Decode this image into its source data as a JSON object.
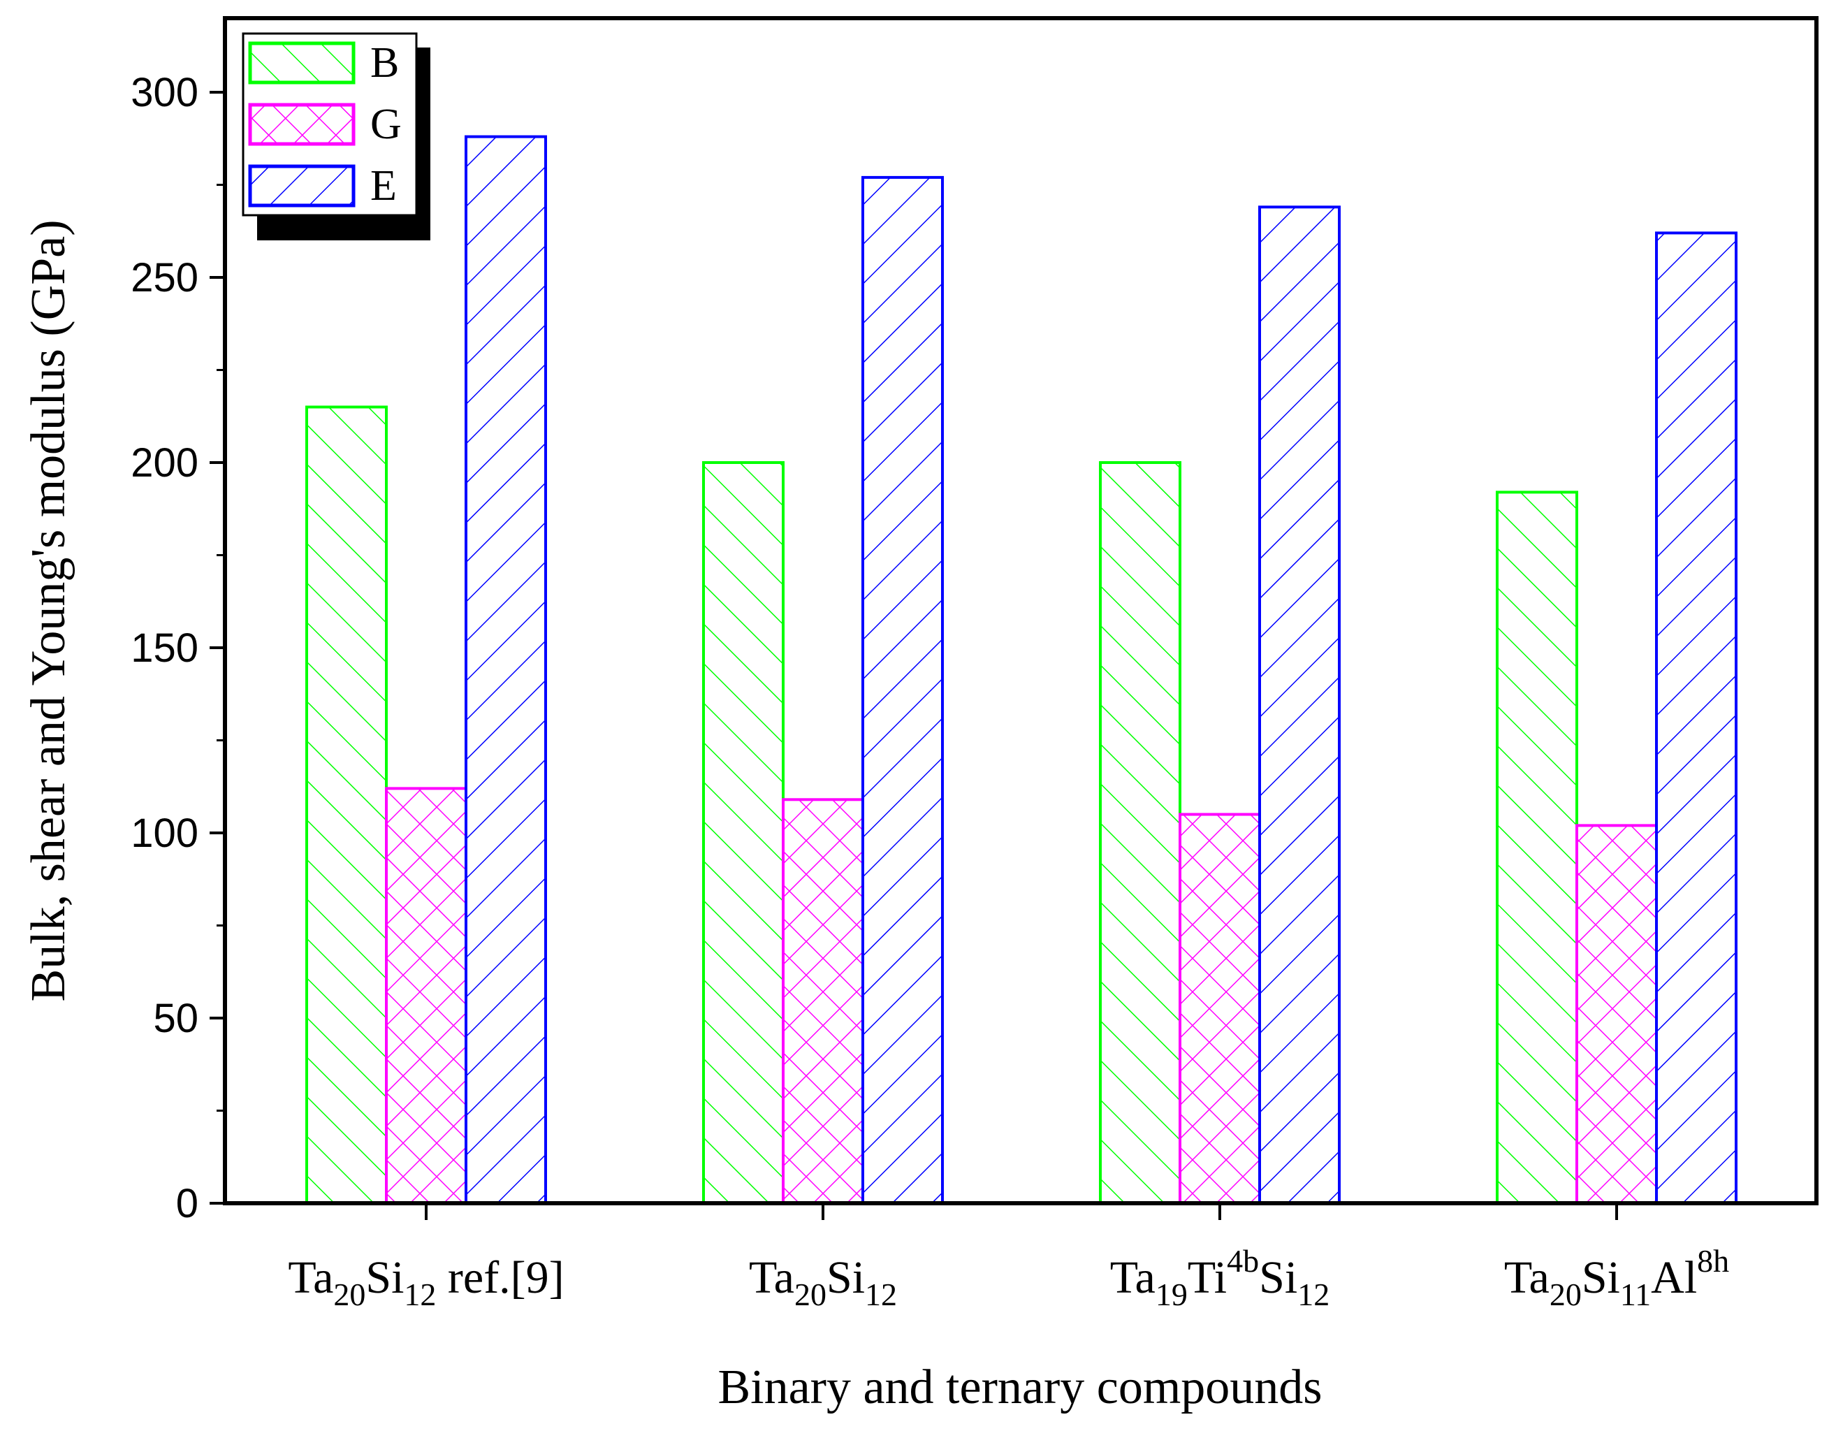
{
  "chart_data": {
    "type": "bar",
    "title": "",
    "xlabel": "Binary and ternary compounds",
    "ylabel": "Bulk, shear and Young's modulus (GPa)",
    "ylim": [
      0,
      320
    ],
    "yticks": [
      0,
      50,
      100,
      150,
      200,
      250,
      300
    ],
    "grid": false,
    "legend_position": "top-left",
    "categories": [
      {
        "base": "Ta",
        "sub1": "20",
        "mid": "Si",
        "sub2": "12",
        "tail": " ref.[9]"
      },
      {
        "base": "Ta",
        "sub1": "20",
        "mid": "Si",
        "sub2": "12"
      },
      {
        "base": "Ta",
        "sub1": "19",
        "mid": "Ti",
        "sup": "4b",
        "mid2": "Si",
        "sub2": "12"
      },
      {
        "base": "Ta",
        "sub1": "20",
        "mid": "Si",
        "sub2": "11",
        "mid2": "Al",
        "sup": "8h"
      }
    ],
    "series": [
      {
        "name": "B",
        "color": "#00ff00",
        "pattern": "diagonal-up",
        "values": [
          215,
          200,
          200,
          192
        ]
      },
      {
        "name": "G",
        "color": "#ff00ff",
        "pattern": "crosshatch",
        "values": [
          112,
          109,
          105,
          102
        ]
      },
      {
        "name": "E",
        "color": "#0000ff",
        "pattern": "diagonal-down",
        "values": [
          288,
          277,
          269,
          262
        ]
      }
    ]
  }
}
